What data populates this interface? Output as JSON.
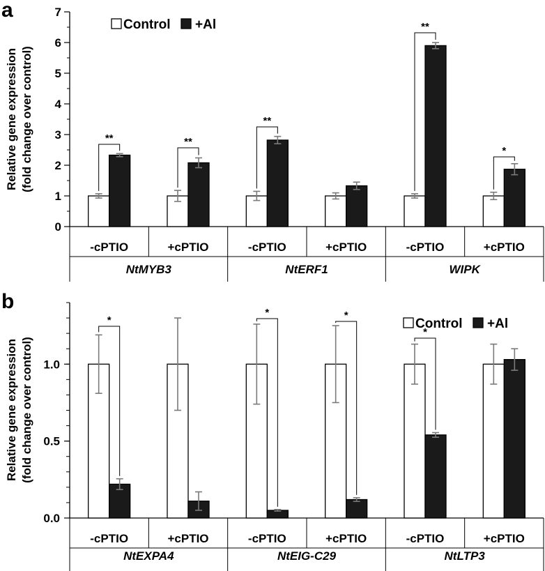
{
  "colors": {
    "control": "#ffffff",
    "treatment": "#1a1a1a",
    "axis": "#000000",
    "errorbar": "#7a7a7a"
  },
  "chart_data": [
    {
      "panel": "a",
      "type": "bar",
      "ylabel_lines": [
        "Relative gene expression",
        "(fold change over control)"
      ],
      "ylim": [
        0,
        7
      ],
      "yticks": [
        "0",
        "1",
        "2",
        "3",
        "4",
        "5",
        "6",
        "7"
      ],
      "legend": {
        "placement": "top-left",
        "entries": [
          "Control",
          "+Al"
        ]
      },
      "series": [
        {
          "name": "Control",
          "values": [
            1.0,
            1.0,
            1.0,
            1.0,
            1.0,
            1.0
          ],
          "errors": [
            0.07,
            0.18,
            0.15,
            0.1,
            0.07,
            0.12
          ]
        },
        {
          "name": "+Al",
          "values": [
            2.33,
            2.08,
            2.82,
            1.33,
            5.9,
            1.87
          ],
          "errors": [
            0.05,
            0.16,
            0.12,
            0.12,
            0.1,
            0.18
          ]
        }
      ],
      "categories": [
        "-cPTIO",
        "+cPTIO",
        "-cPTIO",
        "+cPTIO",
        "-cPTIO",
        "+cPTIO"
      ],
      "genes": [
        "NtMYB3",
        "NtERF1",
        "WIPK"
      ],
      "significance": [
        "**",
        "**",
        "**",
        "",
        "**",
        "*"
      ]
    },
    {
      "panel": "b",
      "type": "bar",
      "ylabel_lines": [
        "Relative gene expression",
        "(fold change over control)"
      ],
      "ylim": [
        0,
        1.4
      ],
      "yticks": [
        "0.0",
        "0.5",
        "1.0"
      ],
      "legend": {
        "placement": "top-right",
        "entries": [
          "Control",
          "+Al"
        ]
      },
      "series": [
        {
          "name": "Control",
          "values": [
            1.0,
            1.0,
            1.0,
            1.0,
            1.0,
            1.0
          ],
          "errors": [
            0.19,
            0.3,
            0.26,
            0.25,
            0.13,
            0.13
          ]
        },
        {
          "name": "+Al",
          "values": [
            0.22,
            0.11,
            0.05,
            0.12,
            0.54,
            1.03
          ],
          "errors": [
            0.035,
            0.06,
            0.005,
            0.012,
            0.015,
            0.07
          ]
        }
      ],
      "categories": [
        "-cPTIO",
        "+cPTIO",
        "-cPTIO",
        "+cPTIO",
        "-cPTIO",
        "+cPTIO"
      ],
      "genes": [
        "NtEXPA4",
        "NtEIG-C29",
        "NtLTP3"
      ],
      "significance": [
        "*",
        "",
        "*",
        "*",
        "*",
        ""
      ]
    }
  ]
}
